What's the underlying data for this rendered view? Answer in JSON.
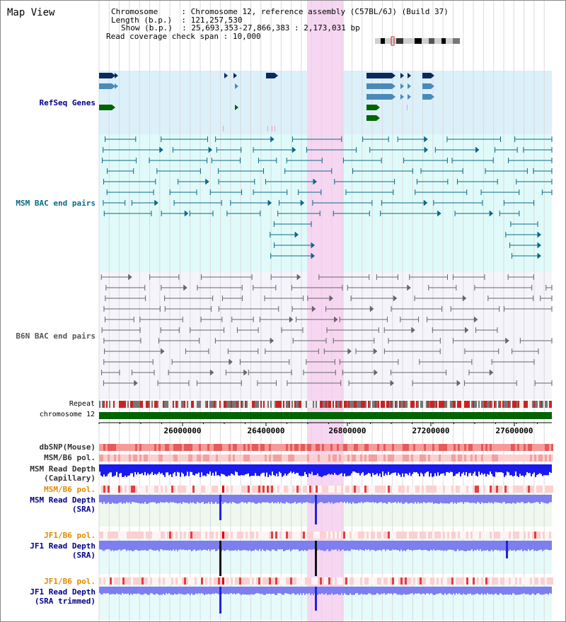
{
  "page": {
    "title": "Map View"
  },
  "header": {
    "chromosome_label": "Chromosome",
    "chromosome_value": "Chromosome 12, reference assembly (C57BL/6J) (Build 37)",
    "length_label": "Length (b.p.)",
    "length_value": "121,257,530",
    "show_label": "Show (b.p.)",
    "show_value": "25,693,353-27,866,383 : 2,173,031 bp",
    "coverage_label": "Read coverage check span",
    "coverage_value": "10,000"
  },
  "tracks": {
    "refseq": "RefSeq Genes",
    "msm_bac": "MSM BAC end pairs",
    "b6n_bac": "B6N BAC end pairs",
    "repeat": "Repeat",
    "chromosome": "chromosome 12",
    "dbsnp": "dbSNP(Mouse)",
    "msm_b6_pol": "MSM/B6 pol.",
    "msm_depth_cap_1": "MSM Read Depth",
    "msm_depth_cap_2": "(Capillary)",
    "msm_b6_pol_2": "MSM/B6 pol.",
    "msm_depth_sra_1": "MSM Read Depth",
    "msm_depth_sra_2": "(SRA)",
    "jf1_b6_pol": "JF1/B6 pol.",
    "jf1_depth_sra_1": "JF1 Read Depth",
    "jf1_depth_sra_2": "(SRA)",
    "jf1_b6_pol_2": "JF1/B6 pol.",
    "jf1_depth_trim_1": "JF1 Read Depth",
    "jf1_depth_trim_2": "(SRA trimmed)"
  },
  "axis": {
    "ticks": [
      "26000000",
      "26400000",
      "26800000",
      "27200000",
      "27600000"
    ]
  },
  "colors": {
    "highlight": "#f7d6f2",
    "refseq_bg": "#dcf0fa",
    "msm_bac_bg": "#e0fafa",
    "b6n_bac_bg": "#f4f4fa",
    "gene_navy": "#0a2a5e",
    "gene_steel": "#4a8ab8",
    "gene_green": "#006400",
    "teal_line": "#0a6a86",
    "gray_line": "#666666",
    "chrom_green": "#006400",
    "depth_blue": "#1a1aee",
    "depth_lavender": "#7e7eee",
    "label_blue": "#00008b",
    "label_orange": "#e08a00"
  }
}
